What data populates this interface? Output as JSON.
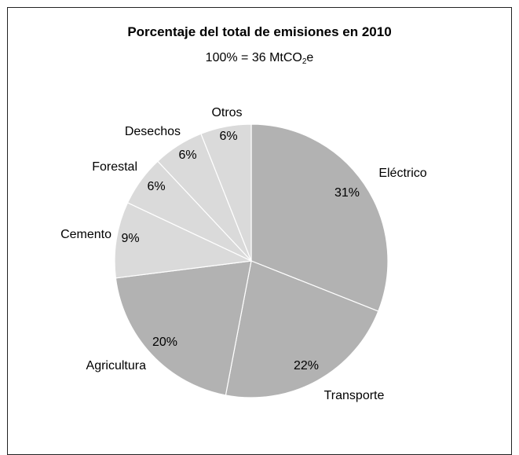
{
  "chart_data": {
    "type": "pie",
    "title": "Porcentaje del total de emisiones en 2010",
    "subtitle_prefix": "100% = 36 MtCO",
    "subtitle_sub": "2",
    "subtitle_suffix": "e",
    "slices": [
      {
        "name": "Eléctrico",
        "value": 31,
        "pct_label": "31%",
        "color": "#b2b2b2"
      },
      {
        "name": "Transporte",
        "value": 22,
        "pct_label": "22%",
        "color": "#b2b2b2"
      },
      {
        "name": "Agricultura",
        "value": 20,
        "pct_label": "20%",
        "color": "#b2b2b2"
      },
      {
        "name": "Cemento",
        "value": 9,
        "pct_label": "9%",
        "color": "#dadada"
      },
      {
        "name": "Forestal",
        "value": 6,
        "pct_label": "6%",
        "color": "#dadada"
      },
      {
        "name": "Desechos",
        "value": 6,
        "pct_label": "6%",
        "color": "#dadada"
      },
      {
        "name": "Otros",
        "value": 6,
        "pct_label": "6%",
        "color": "#dadada"
      }
    ],
    "start_angle": "12 o'clock",
    "direction": "clockwise",
    "legend": "none"
  }
}
